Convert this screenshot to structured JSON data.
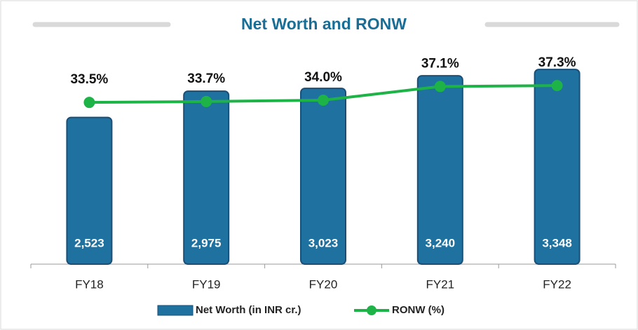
{
  "chart_data": {
    "type": "bar",
    "title": "Net Worth and RONW",
    "categories": [
      "FY18",
      "FY19",
      "FY20",
      "FY21",
      "FY22"
    ],
    "series": [
      {
        "name": "Net Worth (in INR cr.)",
        "type": "bar",
        "color": "#1f71a0",
        "values": [
          2523,
          2975,
          3023,
          3240,
          3348
        ],
        "value_labels": [
          "2,523",
          "2,975",
          "3,023",
          "3,240",
          "3,348"
        ]
      },
      {
        "name": "RONW (%)",
        "type": "line",
        "axis": "y2",
        "color": "#1db347",
        "values": [
          33.5,
          33.7,
          34.0,
          37.1,
          37.3
        ],
        "value_labels": [
          "33.5%",
          "33.7%",
          "34.0%",
          "37.1%",
          "37.3%"
        ]
      }
    ],
    "ylim": [
      0,
      4000
    ],
    "y2lim": [
      -3,
      49.5
    ],
    "legend": "bottom"
  }
}
